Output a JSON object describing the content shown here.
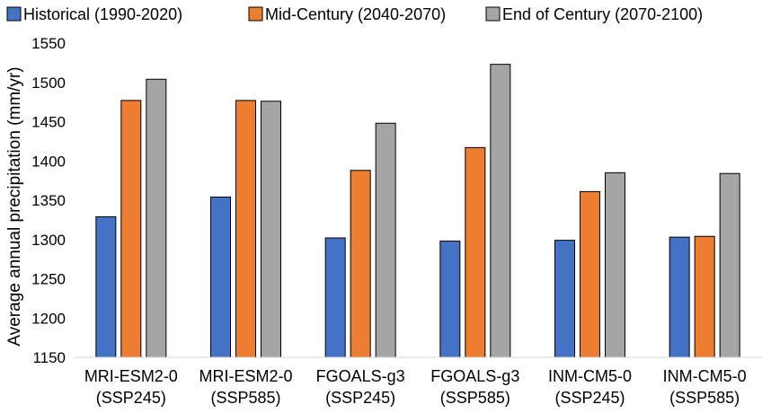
{
  "chart_data": {
    "type": "bar",
    "title": "",
    "xlabel": "",
    "ylabel": "Average annual precipitation (mm/yr)",
    "ylim": [
      1150,
      1550
    ],
    "ytick_step": 50,
    "grid": false,
    "legend_position": "top",
    "categories": [
      {
        "line1": "MRI-ESM2-0",
        "line2": "(SSP245)"
      },
      {
        "line1": "MRI-ESM2-0",
        "line2": "(SSP585)"
      },
      {
        "line1": "FGOALS-g3",
        "line2": "(SSP245)"
      },
      {
        "line1": "FGOALS-g3",
        "line2": "(SSP585)"
      },
      {
        "line1": "INM-CM5-0",
        "line2": "(SSP245)"
      },
      {
        "line1": "INM-CM5-0",
        "line2": "(SSP585)"
      }
    ],
    "series": [
      {
        "name": "Historical (1990-2020)",
        "color": "#4472C4",
        "values": [
          1329,
          1354,
          1302,
          1298,
          1299,
          1303
        ]
      },
      {
        "name": "Mid-Century (2040-2070)",
        "color": "#ED7D31",
        "values": [
          1477,
          1477,
          1388,
          1417,
          1361,
          1304
        ]
      },
      {
        "name": "End of Century (2070-2100)",
        "color": "#A5A5A5",
        "values": [
          1504,
          1476,
          1448,
          1523,
          1385,
          1384
        ]
      }
    ]
  }
}
